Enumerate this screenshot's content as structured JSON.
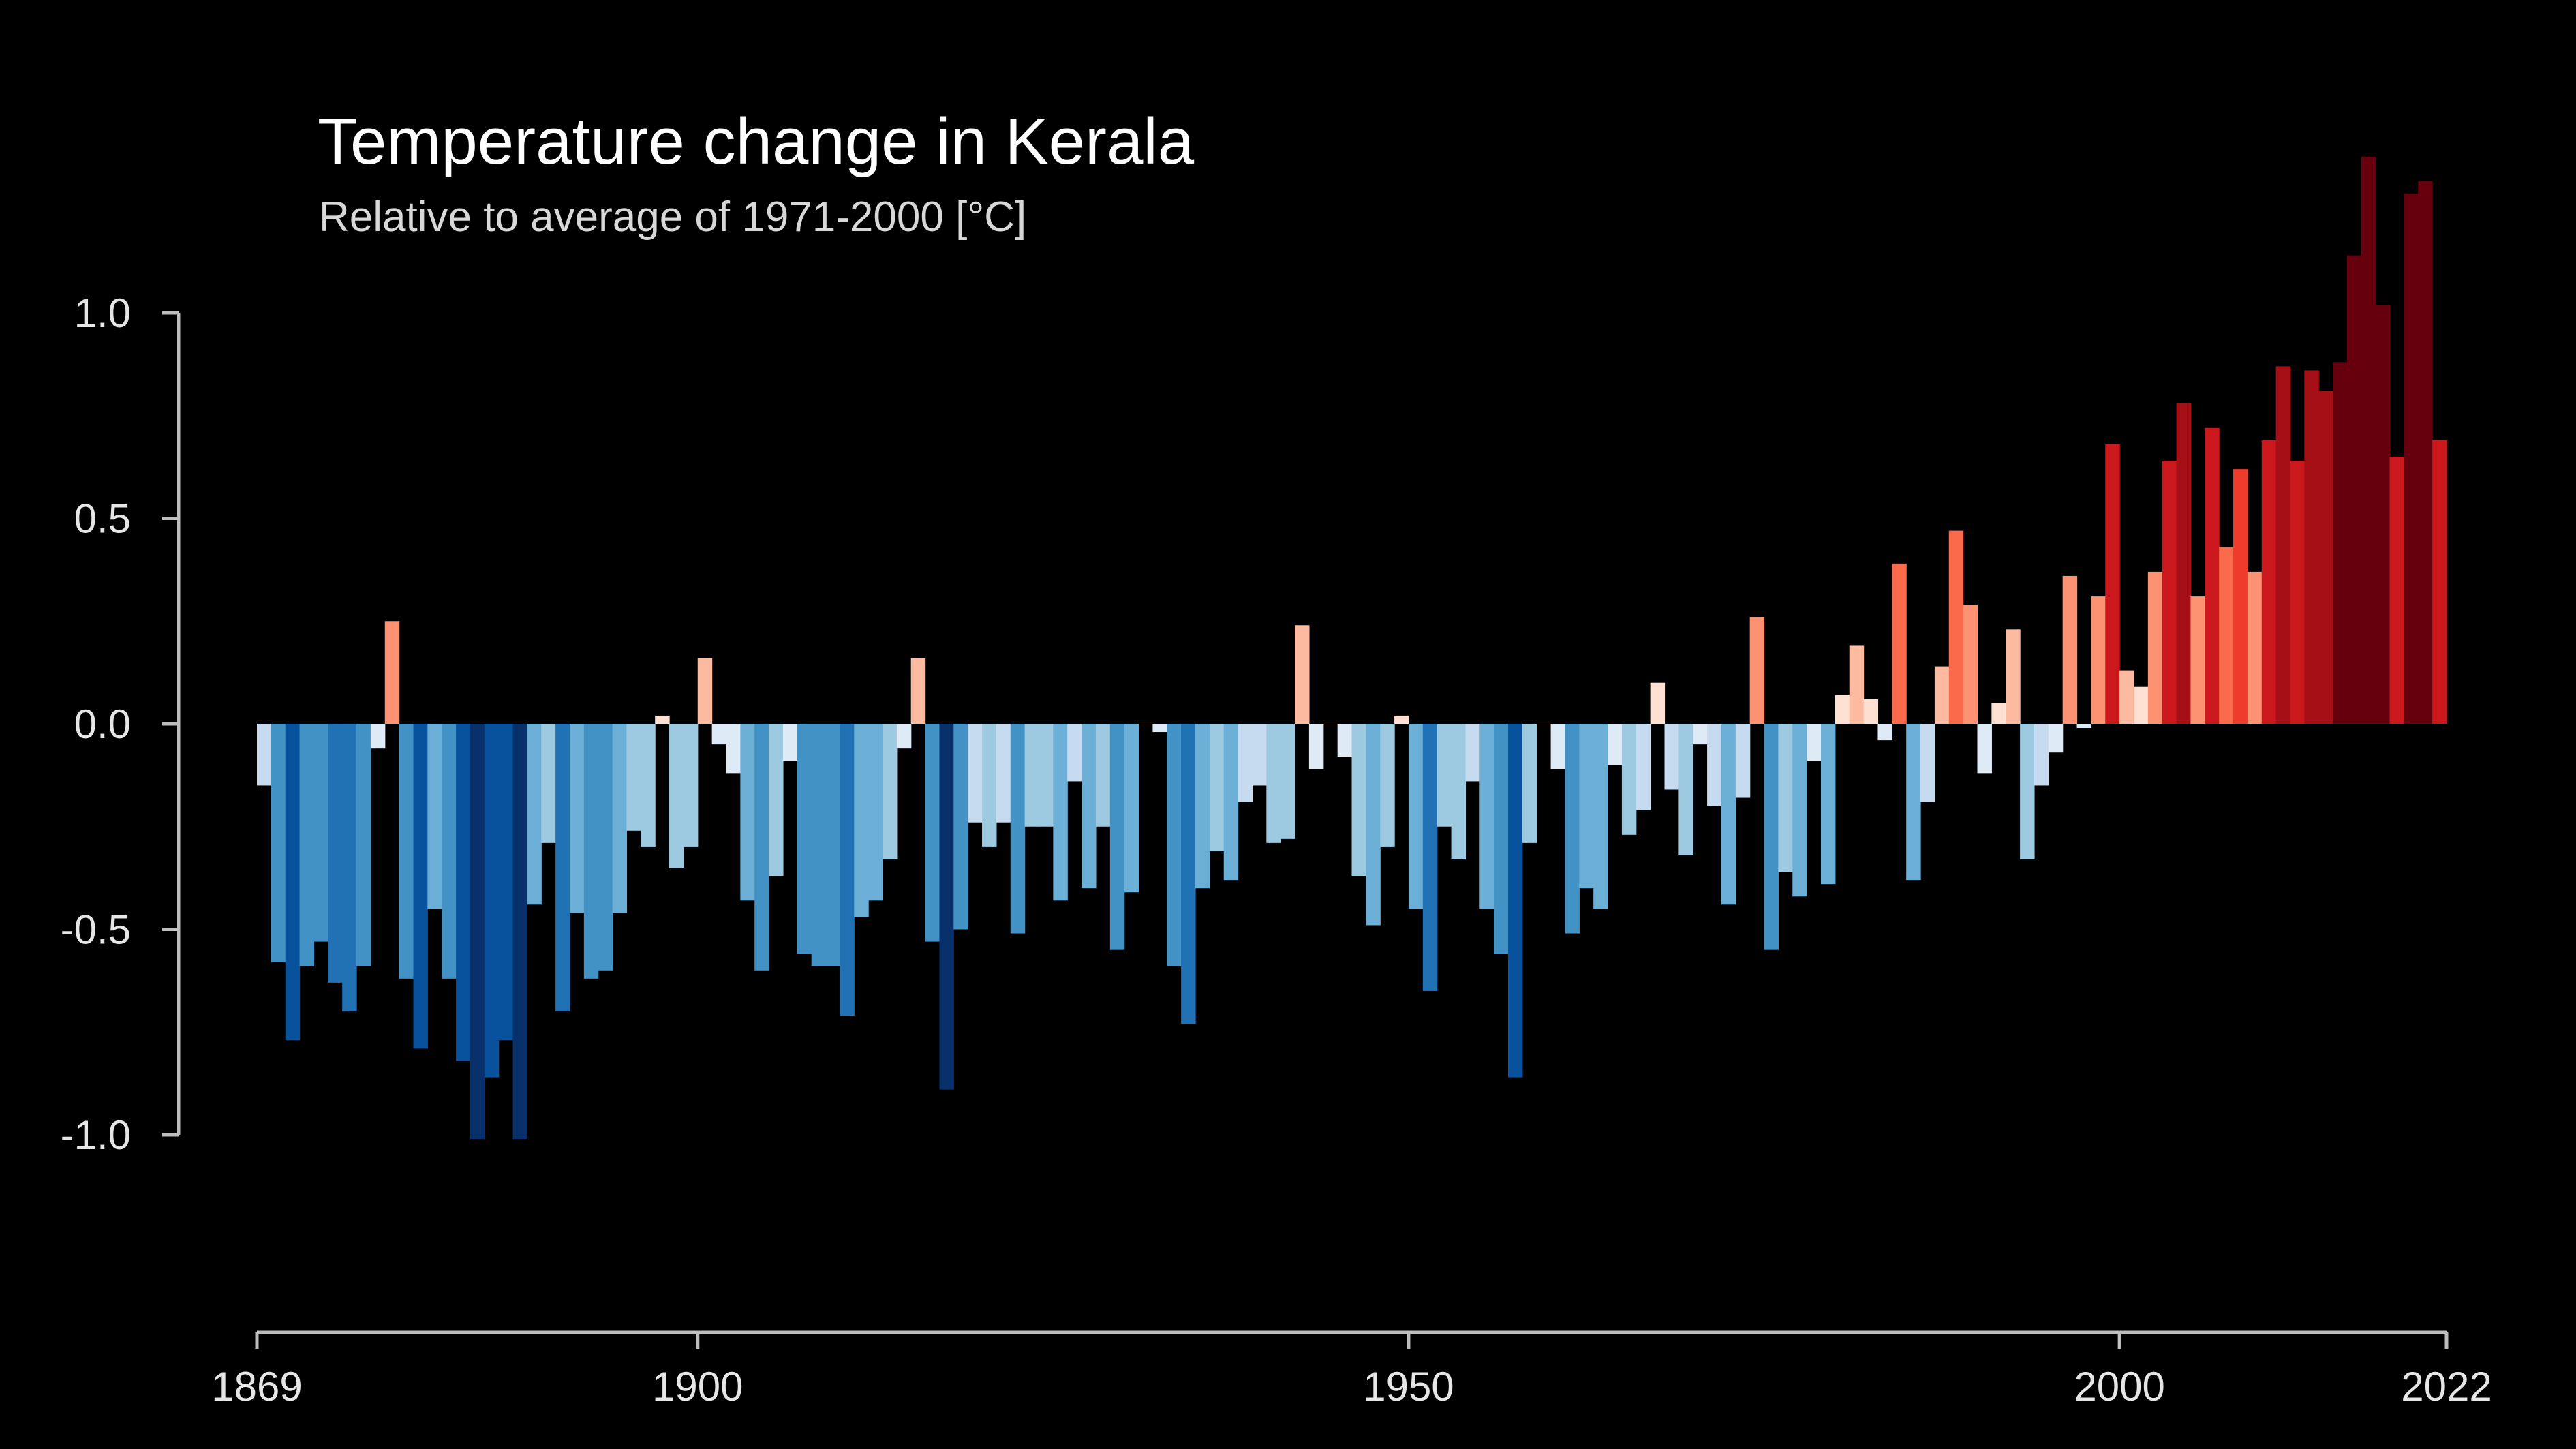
{
  "chart_data": {
    "type": "bar",
    "title": "Temperature change in Kerala",
    "subtitle": "Relative to average of 1971-2000  [°C]",
    "xlabel": "",
    "ylabel": "",
    "x_start": 1869,
    "x_end": 2022,
    "xlim": [
      1869,
      2022
    ],
    "ylim": [
      -1.0,
      1.4
    ],
    "y_ticks": [
      "1.0",
      "0.5",
      "0.0",
      "-0.5",
      "-1.0"
    ],
    "y_tick_values": [
      1.0,
      0.5,
      0.0,
      -0.5,
      -1.0
    ],
    "x_ticks": [
      "1869",
      "1900",
      "1950",
      "2000",
      "2022"
    ],
    "x_tick_values": [
      1869,
      1900,
      1950,
      2000,
      2022
    ],
    "grid": false,
    "legend": "none",
    "color_scale": {
      "negative": [
        "#deebf7",
        "#c6dbef",
        "#9ecae1",
        "#6baed6",
        "#4292c6",
        "#2171b5",
        "#08519c",
        "#08306b"
      ],
      "positive": [
        "#fee0d2",
        "#fcbba1",
        "#fc9272",
        "#fb6a4a",
        "#ef3b2c",
        "#cb181d",
        "#a50f15",
        "#67000d"
      ]
    },
    "values": [
      -0.15,
      -0.58,
      -0.77,
      -0.59,
      -0.53,
      -0.63,
      -0.7,
      -0.59,
      -0.06,
      0.25,
      -0.62,
      -0.79,
      -0.45,
      -0.62,
      -0.82,
      -1.01,
      -0.86,
      -0.77,
      -1.01,
      -0.44,
      -0.29,
      -0.7,
      -0.46,
      -0.62,
      -0.6,
      -0.46,
      -0.26,
      -0.3,
      0.02,
      -0.35,
      -0.3,
      0.16,
      -0.05,
      -0.12,
      -0.43,
      -0.6,
      -0.37,
      -0.09,
      -0.56,
      -0.59,
      -0.59,
      -0.71,
      -0.47,
      -0.43,
      -0.33,
      -0.06,
      0.16,
      -0.53,
      -0.89,
      -0.5,
      -0.24,
      -0.3,
      -0.24,
      -0.51,
      -0.25,
      -0.25,
      -0.43,
      -0.14,
      -0.4,
      -0.25,
      -0.55,
      -0.41,
      0.0,
      -0.02,
      -0.59,
      -0.73,
      -0.4,
      -0.31,
      -0.38,
      -0.19,
      -0.15,
      -0.29,
      -0.28,
      0.24,
      -0.11,
      0.0,
      -0.08,
      -0.37,
      -0.49,
      -0.3,
      0.02,
      -0.45,
      -0.65,
      -0.25,
      -0.33,
      -0.14,
      -0.45,
      -0.56,
      -0.86,
      -0.29,
      0.0,
      -0.11,
      -0.51,
      -0.4,
      -0.45,
      -0.1,
      -0.27,
      -0.21,
      0.1,
      -0.16,
      -0.32,
      -0.05,
      -0.2,
      -0.44,
      -0.18,
      0.26,
      -0.55,
      -0.36,
      -0.42,
      -0.09,
      -0.39,
      0.07,
      0.19,
      0.06,
      -0.04,
      0.39,
      -0.38,
      -0.19,
      0.14,
      0.47,
      0.29,
      -0.12,
      0.05,
      0.23,
      -0.33,
      -0.15,
      -0.07,
      0.36,
      -0.01,
      0.31,
      0.68,
      0.13,
      0.09,
      0.37,
      0.64,
      0.78,
      0.31,
      0.72,
      0.43,
      0.62,
      0.37,
      0.69,
      0.87,
      0.64,
      0.86,
      0.81,
      0.88,
      1.14,
      1.38,
      1.02,
      0.65,
      1.29,
      1.32,
      0.69
    ]
  }
}
